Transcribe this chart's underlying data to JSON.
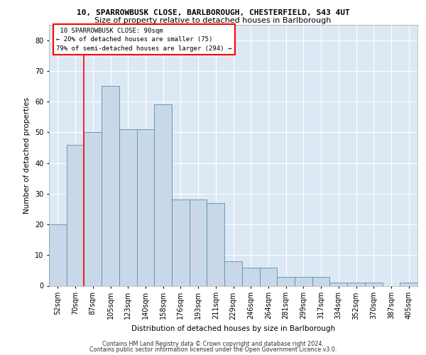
{
  "title1": "10, SPARROWBUSK CLOSE, BARLBOROUGH, CHESTERFIELD, S43 4UT",
  "title2": "Size of property relative to detached houses in Barlborough",
  "xlabel": "Distribution of detached houses by size in Barlborough",
  "ylabel": "Number of detached properties",
  "categories": [
    "52sqm",
    "70sqm",
    "87sqm",
    "105sqm",
    "123sqm",
    "140sqm",
    "158sqm",
    "176sqm",
    "193sqm",
    "211sqm",
    "229sqm",
    "246sqm",
    "264sqm",
    "281sqm",
    "299sqm",
    "317sqm",
    "334sqm",
    "352sqm",
    "370sqm",
    "387sqm",
    "405sqm"
  ],
  "values": [
    20,
    46,
    50,
    65,
    51,
    51,
    59,
    28,
    28,
    27,
    8,
    6,
    6,
    3,
    3,
    3,
    1,
    1,
    1,
    0,
    1
  ],
  "bar_color": "#c8d8e8",
  "bar_edge_color": "#5a8db0",
  "ylim": [
    0,
    85
  ],
  "yticks": [
    0,
    10,
    20,
    30,
    40,
    50,
    60,
    70,
    80
  ],
  "property_label": "10 SPARROWBUSK CLOSE: 90sqm",
  "pct_smaller": "20% of detached houses are smaller (75)",
  "pct_larger": "79% of semi-detached houses are larger (294)",
  "red_line_index": 2,
  "footer1": "Contains HM Land Registry data © Crown copyright and database right 2024.",
  "footer2": "Contains public sector information licensed under the Open Government Licence v3.0.",
  "plot_bg_color": "#dce9f5"
}
